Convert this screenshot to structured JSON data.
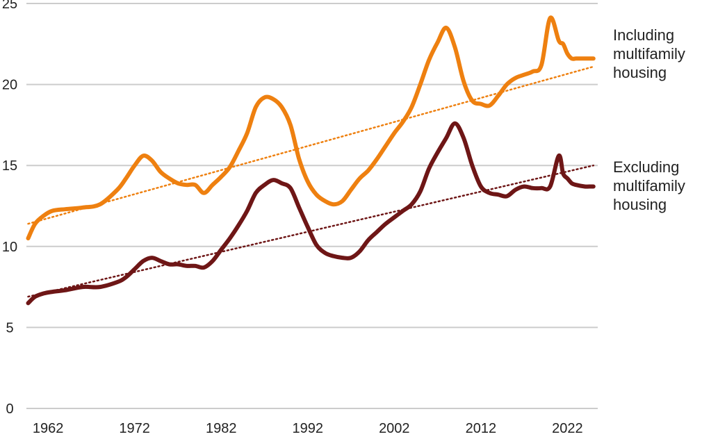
{
  "chart_data": {
    "type": "line",
    "title": "",
    "xlabel": "",
    "ylabel": "",
    "xlim": [
      1959.5,
      2025.5
    ],
    "ylim": [
      0,
      25
    ],
    "grid": true,
    "y_ticks": [
      0,
      5,
      10,
      15,
      20,
      25
    ],
    "y_tick_labels": [
      "0",
      "5",
      "10",
      "15",
      "20",
      "25"
    ],
    "x_ticks": [
      1962,
      1972,
      1982,
      1992,
      2002,
      2012,
      2022
    ],
    "x_tick_labels": [
      "1962",
      "1972",
      "1982",
      "1992",
      "2002",
      "2012",
      "2022"
    ],
    "colors": {
      "including": "#ee8010",
      "excluding": "#6e1616",
      "grid": "#cccccc"
    },
    "series": [
      {
        "key": "including",
        "label_lines": [
          "Including",
          "multifamily",
          "housing"
        ],
        "color": "#ee8010",
        "x": [
          1959.7,
          1960.5,
          1961.5,
          1962.5,
          1964,
          1966,
          1968,
          1970,
          1971,
          1972,
          1973,
          1974,
          1975,
          1976,
          1977,
          1978,
          1979,
          1980,
          1981,
          1982,
          1983,
          1984,
          1985,
          1986,
          1987,
          1988,
          1989,
          1990,
          1991,
          1992,
          1993,
          1994,
          1995,
          1996,
          1997,
          1998,
          1999,
          2000,
          2001,
          2002,
          2003,
          2004,
          2005,
          2006,
          2007,
          2008,
          2009,
          2010,
          2011,
          2012,
          2013,
          2014,
          2015,
          2016,
          2017,
          2018,
          2019,
          2020,
          2021,
          2021.5,
          2022,
          2022.5,
          2023,
          2024,
          2024.5,
          2025
        ],
        "values": [
          10.5,
          11.4,
          11.9,
          12.2,
          12.3,
          12.4,
          12.6,
          13.5,
          14.2,
          15.0,
          15.6,
          15.3,
          14.6,
          14.2,
          13.9,
          13.8,
          13.8,
          13.3,
          13.8,
          14.3,
          14.9,
          15.9,
          17.0,
          18.6,
          19.2,
          19.1,
          18.6,
          17.5,
          15.4,
          14.0,
          13.2,
          12.8,
          12.6,
          12.8,
          13.5,
          14.2,
          14.7,
          15.4,
          16.2,
          17.0,
          17.7,
          18.6,
          20.0,
          21.5,
          22.6,
          23.5,
          22.3,
          20.2,
          19.0,
          18.8,
          18.7,
          19.3,
          20.0,
          20.4,
          20.6,
          20.8,
          21.2,
          24.1,
          22.7,
          22.5,
          21.9,
          21.6,
          21.6,
          21.6,
          21.6,
          21.6
        ]
      },
      {
        "key": "excluding",
        "label_lines": [
          "Excluding",
          "multifamily",
          "housing"
        ],
        "color": "#6e1616",
        "x": [
          1959.7,
          1960.5,
          1961.5,
          1962.5,
          1964,
          1966,
          1968,
          1970,
          1971,
          1972,
          1973,
          1974,
          1975,
          1976,
          1977,
          1978,
          1979,
          1980,
          1981,
          1982,
          1983,
          1984,
          1985,
          1986,
          1987,
          1988,
          1989,
          1990,
          1991,
          1992,
          1993,
          1994,
          1995,
          1996,
          1997,
          1998,
          1999,
          2000,
          2001,
          2002,
          2003,
          2004,
          2005,
          2006,
          2007,
          2008,
          2009,
          2010,
          2011,
          2012,
          2013,
          2014,
          2015,
          2016,
          2017,
          2018,
          2019,
          2020,
          2021,
          2021.5,
          2022,
          2022.5,
          2023,
          2024,
          2024.5,
          2025
        ],
        "values": [
          6.5,
          6.9,
          7.1,
          7.2,
          7.3,
          7.5,
          7.5,
          7.8,
          8.1,
          8.6,
          9.1,
          9.3,
          9.1,
          8.9,
          8.9,
          8.8,
          8.8,
          8.7,
          9.1,
          9.8,
          10.5,
          11.3,
          12.2,
          13.3,
          13.8,
          14.1,
          13.9,
          13.6,
          12.4,
          11.2,
          10.1,
          9.6,
          9.4,
          9.3,
          9.3,
          9.7,
          10.4,
          10.9,
          11.4,
          11.8,
          12.2,
          12.6,
          13.4,
          14.8,
          15.8,
          16.7,
          17.6,
          16.7,
          15.0,
          13.7,
          13.3,
          13.2,
          13.1,
          13.5,
          13.7,
          13.6,
          13.6,
          13.7,
          15.6,
          14.5,
          14.2,
          13.9,
          13.8,
          13.7,
          13.7,
          13.7
        ]
      }
    ],
    "trend_lines": [
      {
        "key": "including-trend",
        "color": "#ee8010",
        "from": [
          1959.7,
          11.4
        ],
        "to": [
          2025,
          21.1
        ]
      },
      {
        "key": "excluding-trend",
        "color": "#6e1616",
        "from": [
          1959.7,
          6.9
        ],
        "to": [
          2025,
          15.0
        ]
      }
    ]
  }
}
